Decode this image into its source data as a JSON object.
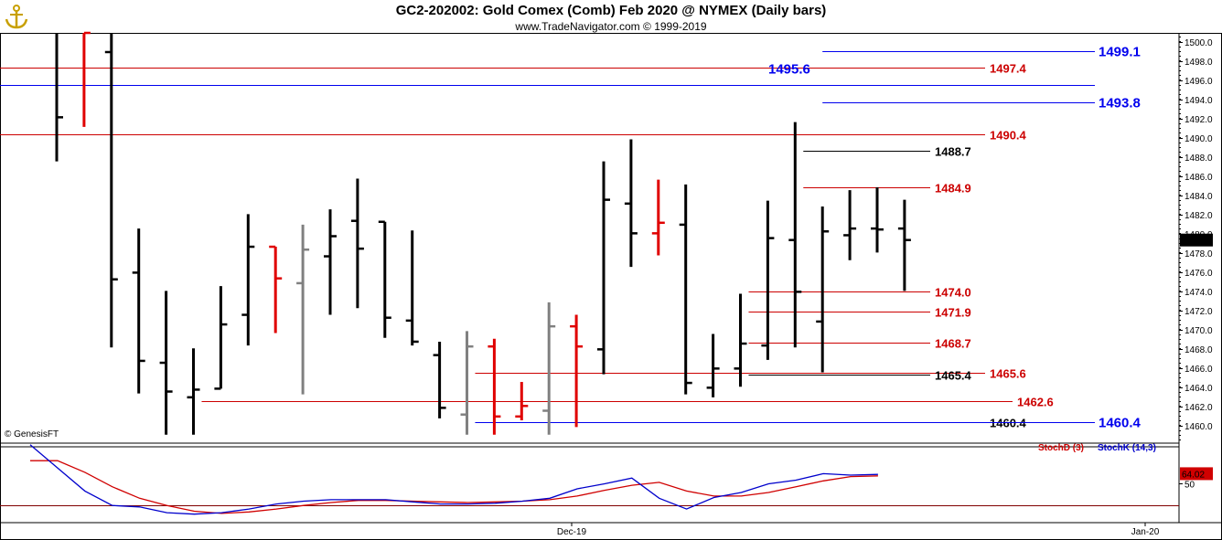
{
  "header": {
    "title": "GC2-202002:  Gold Comex (Comb) Feb 2020 @ NYMEX  (Daily bars)",
    "subtitle": "www.TradeNavigator.com © 1999-2019",
    "credit": "© GenesisFT"
  },
  "colors": {
    "up": "#000000",
    "down": "#e00000",
    "neutral": "#808080",
    "red_line": "#cc0000",
    "blue": "#0000ee",
    "stoch_d": "#d00000",
    "stoch_k": "#0000cc"
  },
  "chart_data": {
    "type": "ohlc",
    "price_axis": {
      "ylim": [
        1458.6,
        1501.0
      ],
      "ticks": [
        1460,
        1462,
        1464,
        1466,
        1468,
        1470,
        1472,
        1474,
        1476,
        1478,
        1480,
        1482,
        1484,
        1486,
        1488,
        1490,
        1492,
        1494,
        1496,
        1498,
        1500
      ],
      "current_price": "1479.4"
    },
    "time_axis": {
      "labels": [
        "Dec-19",
        "Jan-20"
      ]
    },
    "bars": [
      {
        "o": 1502.5,
        "h": 1502.5,
        "l": 1487.6,
        "c": 1492.2,
        "color": "up"
      },
      {
        "o": 1502.5,
        "h": 1502.5,
        "l": 1491.2,
        "c": 1501.2,
        "color": "down"
      },
      {
        "o": 1499.0,
        "h": 1502.5,
        "l": 1468.2,
        "c": 1475.3,
        "color": "up"
      },
      {
        "o": 1476.0,
        "h": 1480.6,
        "l": 1463.4,
        "c": 1466.8,
        "color": "up"
      },
      {
        "o": 1466.6,
        "h": 1474.1,
        "l": 1459.1,
        "c": 1463.6,
        "color": "up"
      },
      {
        "o": 1463.0,
        "h": 1468.1,
        "l": 1459.1,
        "c": 1463.8,
        "color": "up"
      },
      {
        "o": 1463.9,
        "h": 1474.6,
        "l": 1463.9,
        "c": 1470.6,
        "color": "up"
      },
      {
        "o": 1471.6,
        "h": 1482.1,
        "l": 1468.4,
        "c": 1478.7,
        "color": "up"
      },
      {
        "o": 1478.7,
        "h": 1478.7,
        "l": 1469.7,
        "c": 1475.4,
        "color": "down"
      },
      {
        "o": 1474.9,
        "h": 1481.0,
        "l": 1463.3,
        "c": 1478.4,
        "color": "neutral"
      },
      {
        "o": 1477.7,
        "h": 1482.6,
        "l": 1471.6,
        "c": 1479.8,
        "color": "up"
      },
      {
        "o": 1481.4,
        "h": 1485.8,
        "l": 1472.3,
        "c": 1478.5,
        "color": "up"
      },
      {
        "o": 1481.3,
        "h": 1481.3,
        "l": 1469.2,
        "c": 1471.3,
        "color": "up"
      },
      {
        "o": 1471.0,
        "h": 1480.4,
        "l": 1468.4,
        "c": 1468.8,
        "color": "up"
      },
      {
        "o": 1467.4,
        "h": 1468.8,
        "l": 1460.8,
        "c": 1461.9,
        "color": "up"
      },
      {
        "o": 1461.2,
        "h": 1469.9,
        "l": 1459.1,
        "c": 1468.3,
        "color": "neutral"
      },
      {
        "o": 1468.3,
        "h": 1469.1,
        "l": 1459.1,
        "c": 1461.0,
        "color": "down"
      },
      {
        "o": 1461.0,
        "h": 1464.6,
        "l": 1460.6,
        "c": 1462.1,
        "color": "down"
      },
      {
        "o": 1461.6,
        "h": 1472.9,
        "l": 1459.1,
        "c": 1470.4,
        "color": "neutral"
      },
      {
        "o": 1470.4,
        "h": 1471.6,
        "l": 1459.9,
        "c": 1468.3,
        "color": "down"
      },
      {
        "o": 1468.0,
        "h": 1487.6,
        "l": 1465.4,
        "c": 1483.6,
        "color": "up"
      },
      {
        "o": 1483.2,
        "h": 1489.9,
        "l": 1476.6,
        "c": 1480.1,
        "color": "up"
      },
      {
        "o": 1480.1,
        "h": 1485.7,
        "l": 1477.8,
        "c": 1481.2,
        "color": "down"
      },
      {
        "o": 1481.0,
        "h": 1485.2,
        "l": 1463.3,
        "c": 1464.5,
        "color": "up"
      },
      {
        "o": 1464.0,
        "h": 1469.6,
        "l": 1463.0,
        "c": 1466.0,
        "color": "up"
      },
      {
        "o": 1466.0,
        "h": 1473.8,
        "l": 1464.1,
        "c": 1468.6,
        "color": "up"
      },
      {
        "o": 1468.4,
        "h": 1483.5,
        "l": 1466.9,
        "c": 1479.6,
        "color": "up"
      },
      {
        "o": 1479.4,
        "h": 1491.7,
        "l": 1468.2,
        "c": 1474.0,
        "color": "up"
      },
      {
        "o": 1470.9,
        "h": 1482.9,
        "l": 1465.6,
        "c": 1480.3,
        "color": "up"
      },
      {
        "o": 1479.9,
        "h": 1484.6,
        "l": 1477.3,
        "c": 1480.6,
        "color": "up"
      },
      {
        "o": 1480.6,
        "h": 1484.9,
        "l": 1478.1,
        "c": 1480.5,
        "color": "up"
      },
      {
        "o": 1480.6,
        "h": 1483.6,
        "l": 1474.1,
        "c": 1479.4,
        "color": "up"
      }
    ],
    "levels": [
      {
        "value": 1499.1,
        "label": "1499.1",
        "color": "blue",
        "from": 28.0
      },
      {
        "value": 1497.4,
        "label": "1497.4",
        "color": "red",
        "from": -1
      },
      {
        "value": 1495.6,
        "label": "1495.6",
        "color": "blue",
        "from": -1,
        "left_label": true
      },
      {
        "value": 1493.8,
        "label": "1493.8",
        "color": "blue",
        "from": 28.0
      },
      {
        "value": 1490.4,
        "label": "1490.4",
        "color": "red",
        "from": -1
      },
      {
        "value": 1488.7,
        "label": "1488.7",
        "color": "black",
        "from": 27.3
      },
      {
        "value": 1484.9,
        "label": "1484.9",
        "color": "red",
        "from": 27.3
      },
      {
        "value": 1474.0,
        "label": "1474.0",
        "color": "red",
        "from": 25.3
      },
      {
        "value": 1471.9,
        "label": "1471.9",
        "color": "red",
        "from": 25.3
      },
      {
        "value": 1468.7,
        "label": "1468.7",
        "color": "red",
        "from": 25.3
      },
      {
        "value": 1465.6,
        "label": "1465.6",
        "color": "red",
        "from": 15.3
      },
      {
        "value": 1465.4,
        "label": "1465.4",
        "color": "black",
        "from": 25.3
      },
      {
        "value": 1462.6,
        "label": "1462.6",
        "color": "red",
        "from": 5.3
      },
      {
        "value": 1460.4,
        "label": "1460.4",
        "color": "black",
        "from": 15.3
      },
      {
        "value": 1460.4,
        "label": "1460.4",
        "color": "blue",
        "from": 15.3
      }
    ],
    "stochastic": {
      "ylim": [
        0,
        100
      ],
      "tick": "50",
      "last_value": "64.02",
      "legend_d": "StochD (3)",
      "legend_k": "StochK (14,3)",
      "k": [
        104,
        72,
        40,
        20,
        18,
        10,
        8,
        10,
        15,
        22,
        26,
        28,
        28,
        28,
        25,
        22,
        22,
        23,
        26,
        30,
        43,
        50,
        58,
        30,
        15,
        31,
        38,
        50,
        55,
        64,
        62,
        63
      ],
      "d": [
        82,
        82,
        66,
        46,
        30,
        20,
        12,
        9,
        11,
        15,
        20,
        24,
        27,
        27,
        26,
        25,
        24,
        25,
        26,
        28,
        33,
        41,
        48,
        52,
        40,
        33,
        33,
        38,
        46,
        54,
        60,
        61
      ]
    }
  }
}
